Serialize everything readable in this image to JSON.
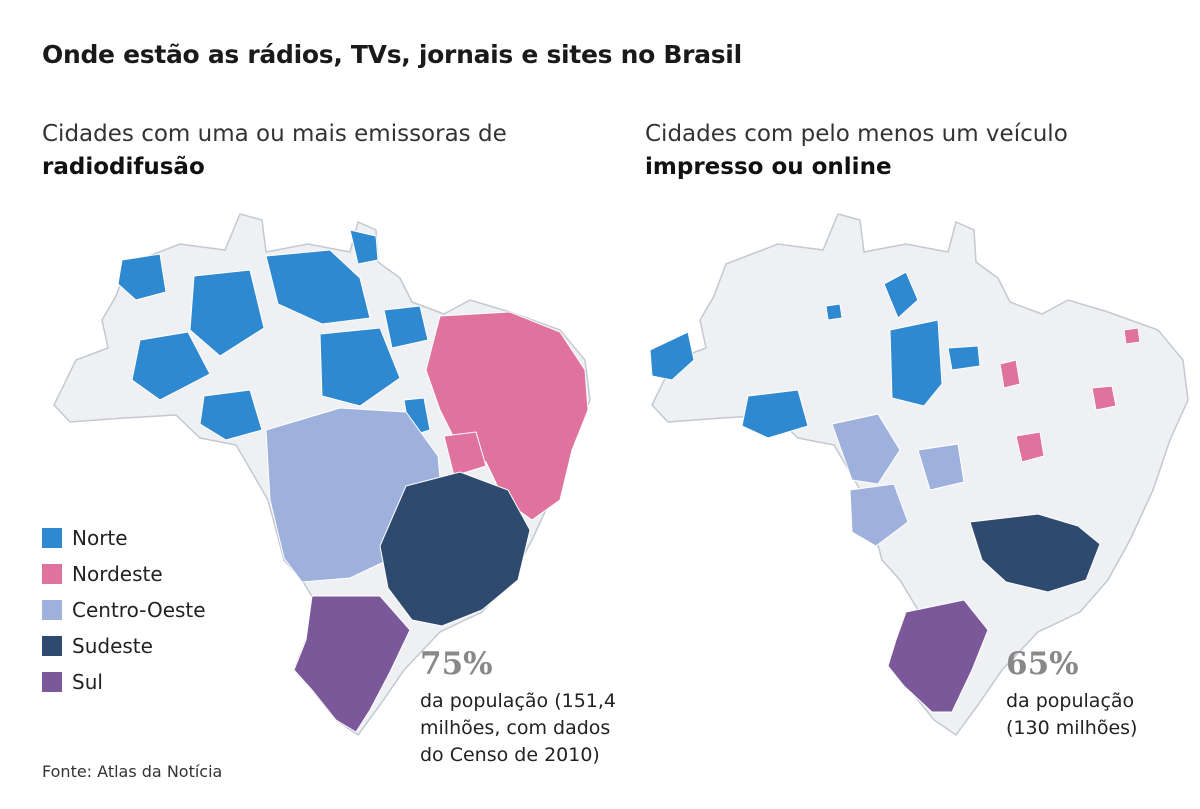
{
  "title": "Onde estão as rádios, TVs, jornais e sites no Brasil",
  "maps": {
    "left": {
      "subtitle_prefix": "Cidades com uma ou mais emissoras de ",
      "subtitle_bold": "radiodifusão",
      "stat_value": "75%",
      "stat_desc": "da população (151,4\nmilhões, com dados\ndo Censo de 2010)"
    },
    "right": {
      "subtitle_prefix": "Cidades com pelo menos um veículo ",
      "subtitle_bold": "impresso ou online",
      "stat_value": "65%",
      "stat_desc": "da população\n(130 milhões)"
    }
  },
  "legend": [
    {
      "label": "Norte",
      "color": "#2f89d0"
    },
    {
      "label": "Nordeste",
      "color": "#e0729e"
    },
    {
      "label": "Centro-Oeste",
      "color": "#9eb0dc"
    },
    {
      "label": "Sudeste",
      "color": "#2e4a6e"
    },
    {
      "label": "Sul",
      "color": "#7b5899"
    }
  ],
  "colors": {
    "country_fill": "#eef0f4",
    "country_stroke": "#c4c8d0"
  },
  "source": "Fonte: Atlas da Notícia"
}
